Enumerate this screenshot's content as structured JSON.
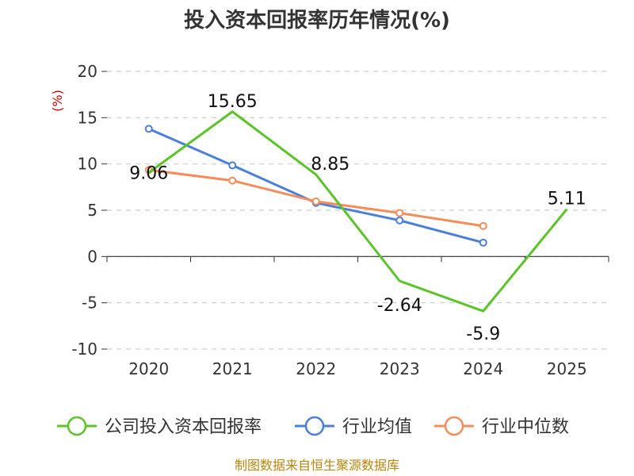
{
  "chart_data": {
    "type": "line",
    "title": "投入资本回报率历年情况(%)",
    "ylabel": "(%)",
    "categories": [
      "2020",
      "2021",
      "2022",
      "2023",
      "2024",
      "2025"
    ],
    "ylim": [
      -10,
      20
    ],
    "yticks": [
      20,
      15,
      10,
      5,
      0,
      -5,
      -10
    ],
    "grid": true,
    "legend_position": "bottom",
    "series": [
      {
        "name": "公司投入资本回报率",
        "color": "#5cc42b",
        "values": [
          9.06,
          15.65,
          8.85,
          -2.64,
          -5.9,
          5.11
        ],
        "labels": [
          "9.06",
          "15.65",
          "8.85",
          "-2.64",
          "-5.9",
          "5.11"
        ],
        "markers": false
      },
      {
        "name": "行业均值",
        "color": "#4a7fdb",
        "values": [
          13.8,
          9.85,
          5.8,
          3.9,
          1.5,
          null
        ],
        "markers": true
      },
      {
        "name": "行业中位数",
        "color": "#f58d5a",
        "values": [
          9.35,
          8.2,
          5.95,
          4.7,
          3.3,
          null
        ],
        "markers": true
      }
    ]
  },
  "source": "制图数据来自恒生聚源数据库"
}
